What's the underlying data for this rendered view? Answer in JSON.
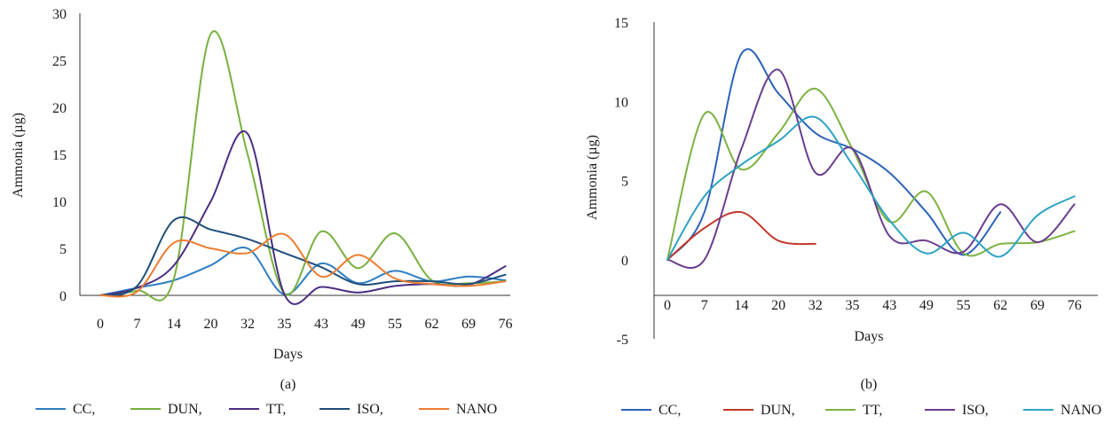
{
  "chart_data": [
    {
      "type": "line",
      "panel_label": "(a)",
      "xlabel": "Days",
      "ylabel": "Ammonia (µg)",
      "x": [
        0,
        7,
        14,
        20,
        32,
        35,
        43,
        49,
        55,
        62,
        69,
        76
      ],
      "xticks": [
        "0",
        "7",
        "14",
        "20",
        "32",
        "35",
        "43",
        "49",
        "55",
        "62",
        "69",
        "76"
      ],
      "ylim": [
        0,
        30
      ],
      "yticks": [
        "0",
        "5",
        "10",
        "15",
        "20",
        "25",
        "30"
      ],
      "grid": false,
      "legend_position": "bottom",
      "legend": [
        "CC,",
        "DUN,",
        "TT,",
        "ISO,",
        "NANO"
      ],
      "series": [
        {
          "name": "CC",
          "color": "#2e7fc4",
          "values": [
            0,
            0.8,
            1.6,
            3.2,
            5.0,
            0.1,
            3.4,
            1.3,
            2.6,
            1.5,
            2.0,
            1.6
          ]
        },
        {
          "name": "DUN",
          "color": "#77b13f",
          "values": [
            0,
            0.5,
            1.8,
            27.8,
            15.0,
            0.2,
            6.8,
            2.9,
            6.6,
            1.6,
            1.3,
            1.5
          ]
        },
        {
          "name": "TT",
          "color": "#4b2e83",
          "values": [
            0,
            0.8,
            3.2,
            10.0,
            17.2,
            0.1,
            0.9,
            0.3,
            1.0,
            1.2,
            1.1,
            3.1
          ]
        },
        {
          "name": "ISO",
          "color": "#1f4e79",
          "values": [
            0,
            1.0,
            8.0,
            7.0,
            6.0,
            4.5,
            3.0,
            1.2,
            1.5,
            1.5,
            1.2,
            2.2
          ]
        },
        {
          "name": "NANO",
          "color": "#ed7d31",
          "values": [
            0,
            0.4,
            5.6,
            5.0,
            4.5,
            6.5,
            2.0,
            4.3,
            1.8,
            1.2,
            1.0,
            1.5
          ]
        }
      ]
    },
    {
      "type": "line",
      "panel_label": "(b)",
      "xlabel": "Days",
      "ylabel": "Ammonia (µg)",
      "x": [
        0,
        7,
        14,
        20,
        32,
        35,
        43,
        49,
        55,
        62,
        69,
        76
      ],
      "xticks": [
        "0",
        "7",
        "14",
        "20",
        "32",
        "35",
        "43",
        "49",
        "55",
        "62",
        "69",
        "76"
      ],
      "ylim": [
        -5,
        15
      ],
      "yticks": [
        "-5",
        "0",
        "5",
        "10",
        "15"
      ],
      "grid": false,
      "legend_position": "bottom",
      "legend": [
        "CC,",
        "DUN,",
        "TT,",
        "ISO,",
        "NANO"
      ],
      "series": [
        {
          "name": "CC",
          "color": "#2e63b8",
          "values": [
            0,
            3.0,
            13.0,
            10.5,
            8.0,
            7.0,
            5.5,
            3.0,
            0.3,
            3.0,
            null,
            null
          ]
        },
        {
          "name": "DUN",
          "color": "#c0392b",
          "values": [
            0,
            2.0,
            3.0,
            1.2,
            1.0,
            null,
            null,
            null,
            null,
            null,
            null,
            null
          ]
        },
        {
          "name": "TT",
          "color": "#7cb342",
          "values": [
            0,
            9.2,
            5.7,
            8.0,
            10.8,
            7.0,
            2.4,
            4.3,
            0.4,
            1.0,
            1.1,
            1.8
          ]
        },
        {
          "name": "ISO",
          "color": "#6a3d8f",
          "values": [
            0,
            0,
            7.0,
            12.0,
            5.5,
            7.0,
            1.5,
            1.2,
            0.5,
            3.5,
            1.1,
            3.5
          ]
        },
        {
          "name": "NANO",
          "color": "#2ea3c4",
          "values": [
            0,
            4.0,
            6.0,
            7.5,
            9.0,
            6.0,
            2.5,
            0.4,
            1.7,
            0.2,
            2.8,
            4.0
          ]
        }
      ]
    }
  ]
}
